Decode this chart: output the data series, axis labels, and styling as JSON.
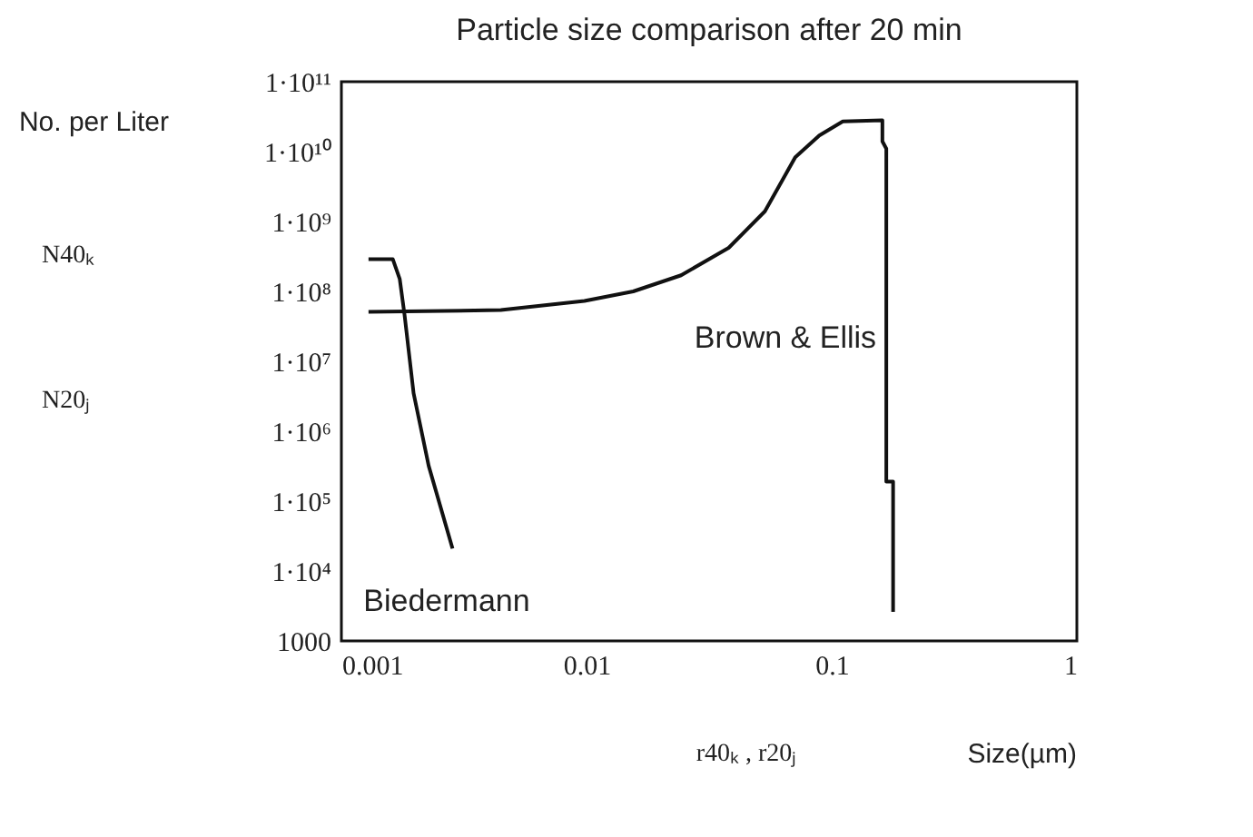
{
  "chart_data": {
    "type": "line",
    "title": "Particle size comparison after 20 min",
    "ylabel": "No. per Liter",
    "xlabel": "r40ₖ , r20ⱼ",
    "log": "xy",
    "grid": false,
    "legend": false,
    "marker": "none",
    "line_style": "solid",
    "xlim": [
      0.001,
      1
    ],
    "xticks": [
      0.001,
      0.01,
      0.1,
      1
    ],
    "ylim": [
      1000,
      100000000000.0
    ],
    "yticks": [
      1000,
      {
        "value": 10000,
        "label": "1·10⁴"
      },
      {
        "value": 100000,
        "label": "1·10⁵"
      },
      {
        "value": 1000000,
        "label": "1·10⁶"
      },
      {
        "value": 10000000,
        "label": "1·10⁷"
      },
      {
        "value": 100000000,
        "label": "1·10⁸"
      },
      {
        "value": 1000000000,
        "label": "1·10⁹"
      },
      {
        "value": 10000000000,
        "label": "1·10¹⁰"
      },
      {
        "value": 100000000000,
        "label": "1·10¹¹"
      }
    ],
    "series": [
      {
        "color": "#111111",
        "x": [
          0.00129,
          0.00162,
          0.00173,
          0.00181,
          0.00197,
          0.00227,
          0.00284
        ],
        "values": [
          290000000.0,
          290000000.0,
          150000000.0,
          46000000.0,
          3500000.0,
          320000.0,
          21000.0
        ]
      },
      {
        "color": "#111111",
        "x": [
          0.00129,
          0.00447,
          0.0098,
          0.0155,
          0.0243,
          0.038,
          0.0534,
          0.071,
          0.089,
          0.111,
          0.161,
          0.161,
          0.167,
          0.167,
          0.178,
          0.178
        ],
        "values": [
          51000000.0,
          54000000.0,
          73000000.0,
          100000000.0,
          170000000.0,
          420000000.0,
          1400000000.0,
          8300000000.0,
          17000000000.0,
          27000000000.0,
          28000000000.0,
          14000000000.0,
          11000000000.0,
          190000.0,
          190000.0,
          2600.0
        ]
      }
    ],
    "annotations": [
      "N40ₖ",
      "N20ⱼ",
      "Size(µm)",
      "Biedermann",
      "Brown & Ellis"
    ]
  }
}
